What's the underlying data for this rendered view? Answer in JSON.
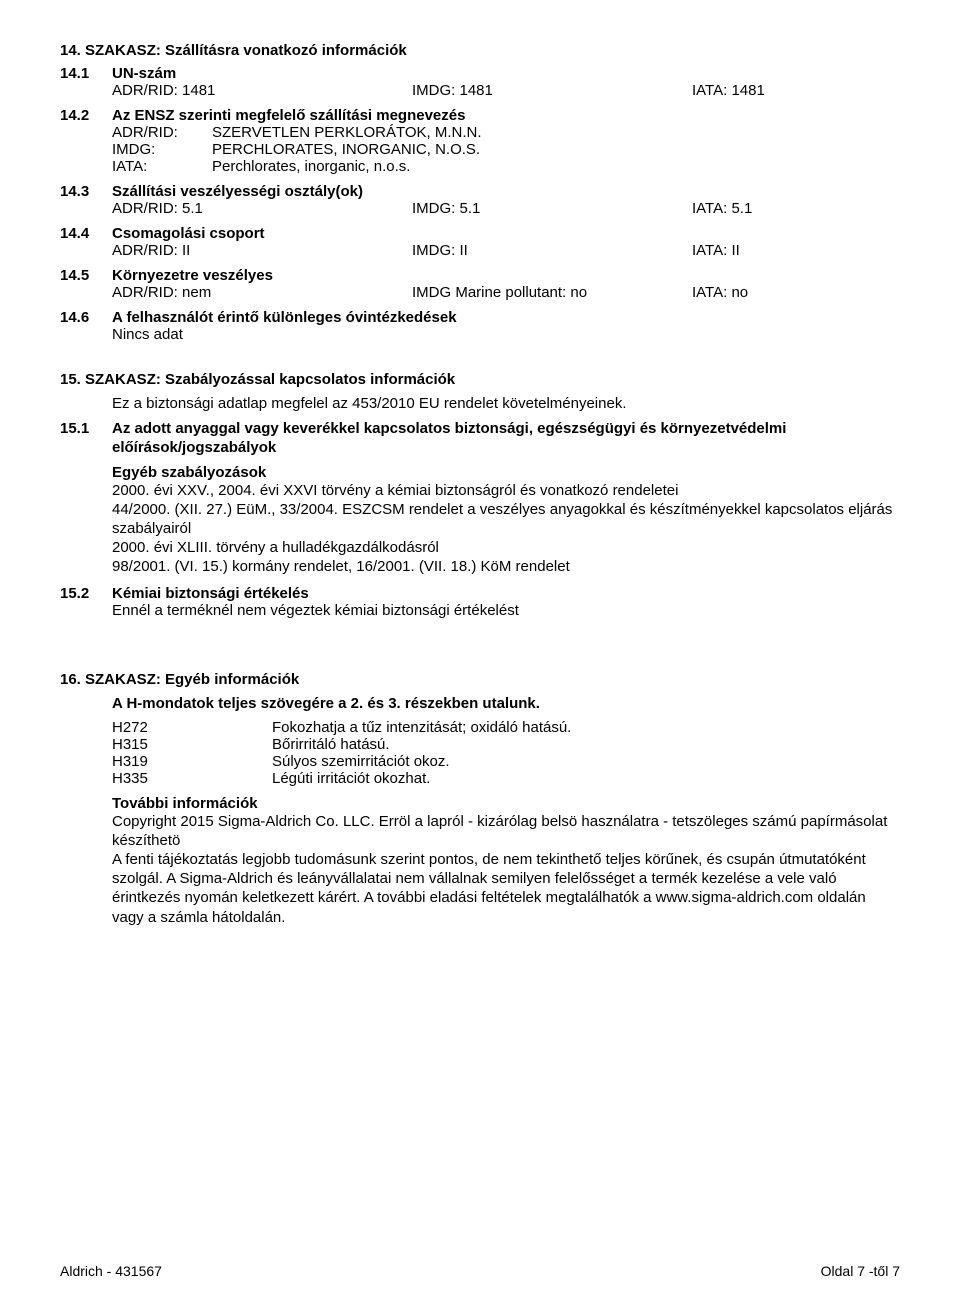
{
  "s14": {
    "title": "14. SZAKASZ: Szállításra vonatkozó információk",
    "un": {
      "num": "14.1",
      "label": "UN-szám",
      "adr": "ADR/RID: 1481",
      "imdg": "IMDG: 1481",
      "iata": "IATA: 1481"
    },
    "s2": {
      "num": "14.2",
      "label": "Az ENSZ szerinti megfelelő szállítási megnevezés",
      "adr_k": "ADR/RID:",
      "adr_v": "SZERVETLEN PERKLORÁTOK, M.N.N.",
      "imdg_k": "IMDG:",
      "imdg_v": "PERCHLORATES, INORGANIC, N.O.S.",
      "iata_k": "IATA:",
      "iata_v": "Perchlorates, inorganic, n.o.s."
    },
    "s3": {
      "num": "14.3",
      "label": "Szállítási veszélyességi osztály(ok)",
      "adr": "ADR/RID: 5.1",
      "imdg": "IMDG: 5.1",
      "iata": "IATA: 5.1"
    },
    "s4": {
      "num": "14.4",
      "label": "Csomagolási csoport",
      "adr": "ADR/RID: II",
      "imdg": "IMDG: II",
      "iata": "IATA: II"
    },
    "s5": {
      "num": "14.5",
      "label": "Környezetre veszélyes",
      "adr": "ADR/RID: nem",
      "imdg": "IMDG Marine pollutant: no",
      "iata": "IATA: no"
    },
    "s6": {
      "num": "14.6",
      "label": "A felhasználót érintő különleges óvintézkedések",
      "val": "Nincs adat"
    }
  },
  "s15": {
    "title": "15. SZAKASZ: Szabályozással kapcsolatos információk",
    "intro": "Ez a biztonsági adatlap megfelel az 453/2010 EU rendelet követelményeinek.",
    "s1": {
      "num": "15.1",
      "label": "Az adott anyaggal vagy keverékkel kapcsolatos biztonsági, egészségügyi és környezetvédelmi előírások/jogszabályok",
      "reg_title": "Egyéb szabályozások",
      "l1": "2000. évi XXV., 2004. évi XXVI törvény a kémiai biztonságról és vonatkozó rendeletei",
      "l2": "44/2000. (XII. 27.) EüM., 33/2004. ESZCSM rendelet a veszélyes anyagokkal és készítményekkel kapcsolatos eljárás szabályairól",
      "l3": "2000. évi XLIII. törvény a hulladékgazdálkodásról",
      "l4": "98/2001. (VI. 15.) kormány rendelet, 16/2001. (VII. 18.) KöM rendelet"
    },
    "s2": {
      "num": "15.2",
      "label": "Kémiai biztonsági értékelés",
      "val": "Ennél a terméknél nem végeztek kémiai biztonsági értékelést"
    }
  },
  "s16": {
    "title": "16. SZAKASZ: Egyéb információk",
    "ref": "A H-mondatok teljes szövegére a 2. és 3. részekben utalunk.",
    "h": [
      {
        "k": "H272",
        "v": "Fokozhatja a tűz intenzitását; oxidáló hatású."
      },
      {
        "k": "H315",
        "v": "Bőrirritáló hatású."
      },
      {
        "k": "H319",
        "v": "Súlyos szemirritációt okoz."
      },
      {
        "k": "H335",
        "v": "Légúti irritációt okozhat."
      }
    ],
    "more_title": "További információk",
    "more": "Copyright 2015 Sigma-Aldrich Co. LLC. Erröl a lapról - kizárólag belsö használatra - tetszöleges számú papírmásolat készíthetö\nA fenti tájékoztatás legjobb tudomásunk szerint pontos, de nem tekinthető teljes körűnek, és csupán útmutatóként szolgál. A Sigma-Aldrich és leányvállalatai nem vállalnak semilyen felelősséget a termék kezelése a vele való érintkezés nyomán keletkezett kárért. A további eladási feltételek megtalálhatók a www.sigma-aldrich.com oldalán vagy a számla hátoldalán."
  },
  "footer": {
    "left": "Aldrich - 431567",
    "right": "Oldal 7 -től 7"
  }
}
